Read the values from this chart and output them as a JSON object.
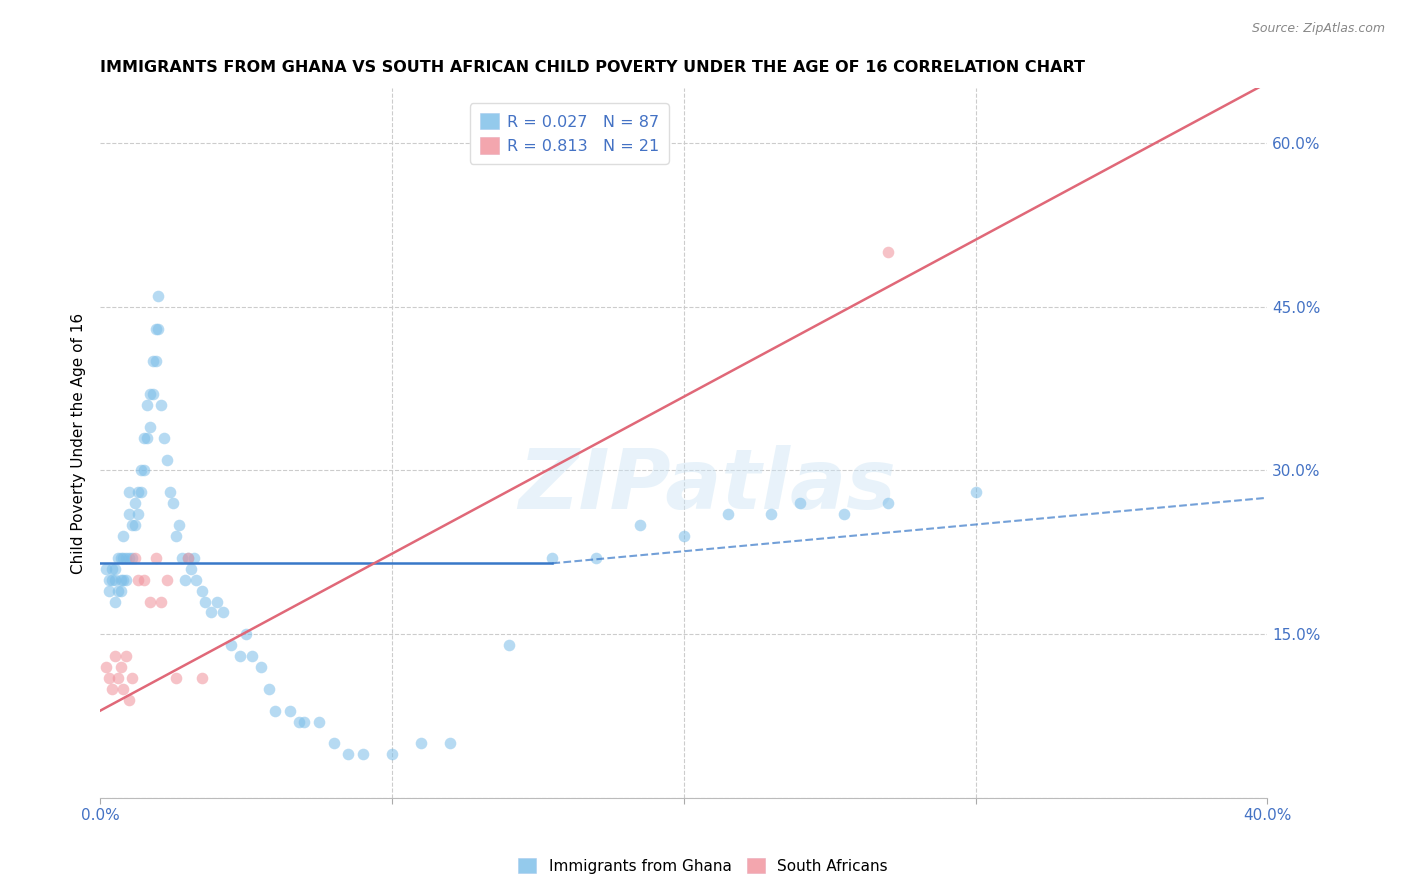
{
  "title": "IMMIGRANTS FROM GHANA VS SOUTH AFRICAN CHILD POVERTY UNDER THE AGE OF 16 CORRELATION CHART",
  "source_text": "Source: ZipAtlas.com",
  "ylabel": "Child Poverty Under the Age of 16",
  "xlim": [
    0.0,
    0.4
  ],
  "ylim": [
    0.0,
    0.65
  ],
  "yticks_right": [
    0.0,
    0.15,
    0.3,
    0.45,
    0.6
  ],
  "yticklabels_right": [
    "",
    "15.0%",
    "30.0%",
    "45.0%",
    "60.0%"
  ],
  "blue_scatter_x": [
    0.002,
    0.003,
    0.003,
    0.004,
    0.004,
    0.005,
    0.005,
    0.005,
    0.006,
    0.006,
    0.007,
    0.007,
    0.007,
    0.008,
    0.008,
    0.008,
    0.009,
    0.009,
    0.01,
    0.01,
    0.01,
    0.011,
    0.011,
    0.012,
    0.012,
    0.013,
    0.013,
    0.014,
    0.014,
    0.015,
    0.015,
    0.016,
    0.016,
    0.017,
    0.017,
    0.018,
    0.018,
    0.019,
    0.019,
    0.02,
    0.02,
    0.021,
    0.022,
    0.023,
    0.024,
    0.025,
    0.026,
    0.027,
    0.028,
    0.029,
    0.03,
    0.031,
    0.032,
    0.033,
    0.035,
    0.036,
    0.038,
    0.04,
    0.042,
    0.045,
    0.048,
    0.05,
    0.052,
    0.055,
    0.058,
    0.06,
    0.065,
    0.068,
    0.07,
    0.075,
    0.08,
    0.085,
    0.09,
    0.1,
    0.11,
    0.12,
    0.14,
    0.155,
    0.17,
    0.185,
    0.2,
    0.215,
    0.23,
    0.24,
    0.255,
    0.27,
    0.3
  ],
  "blue_scatter_y": [
    0.21,
    0.2,
    0.19,
    0.21,
    0.2,
    0.2,
    0.21,
    0.18,
    0.22,
    0.19,
    0.22,
    0.2,
    0.19,
    0.24,
    0.22,
    0.2,
    0.22,
    0.2,
    0.28,
    0.26,
    0.22,
    0.25,
    0.22,
    0.27,
    0.25,
    0.28,
    0.26,
    0.3,
    0.28,
    0.33,
    0.3,
    0.36,
    0.33,
    0.37,
    0.34,
    0.4,
    0.37,
    0.43,
    0.4,
    0.46,
    0.43,
    0.36,
    0.33,
    0.31,
    0.28,
    0.27,
    0.24,
    0.25,
    0.22,
    0.2,
    0.22,
    0.21,
    0.22,
    0.2,
    0.19,
    0.18,
    0.17,
    0.18,
    0.17,
    0.14,
    0.13,
    0.15,
    0.13,
    0.12,
    0.1,
    0.08,
    0.08,
    0.07,
    0.07,
    0.07,
    0.05,
    0.04,
    0.04,
    0.04,
    0.05,
    0.05,
    0.14,
    0.22,
    0.22,
    0.25,
    0.24,
    0.26,
    0.26,
    0.27,
    0.26,
    0.27,
    0.28
  ],
  "pink_scatter_x": [
    0.002,
    0.003,
    0.004,
    0.005,
    0.006,
    0.007,
    0.008,
    0.009,
    0.01,
    0.011,
    0.012,
    0.013,
    0.015,
    0.017,
    0.019,
    0.021,
    0.023,
    0.026,
    0.03,
    0.035,
    0.27
  ],
  "pink_scatter_y": [
    0.12,
    0.11,
    0.1,
    0.13,
    0.11,
    0.12,
    0.1,
    0.13,
    0.09,
    0.11,
    0.22,
    0.2,
    0.2,
    0.18,
    0.22,
    0.18,
    0.2,
    0.11,
    0.22,
    0.11,
    0.5
  ],
  "blue_solid_line": {
    "x0": 0.0,
    "x1": 0.155,
    "y0": 0.215,
    "y1": 0.215
  },
  "blue_dash_line": {
    "x0": 0.155,
    "x1": 0.4,
    "y0": 0.215,
    "y1": 0.275
  },
  "pink_line": {
    "x0": 0.0,
    "x1": 0.4,
    "y0": 0.08,
    "y1": 0.655
  },
  "watermark": "ZIPatlas",
  "scatter_alpha": 0.55,
  "scatter_size": 70,
  "blue_color": "#7abde8",
  "pink_color": "#f0909a",
  "blue_line_color": "#3878c8",
  "pink_line_color": "#e06878",
  "grid_color": "#cccccc",
  "title_fontsize": 11.5,
  "tick_label_color": "#4472c4",
  "legend_r1": "R = 0.027",
  "legend_n1": "N = 87",
  "legend_r2": "R = 0.813",
  "legend_n2": "N = 21",
  "legend_label1": "Immigrants from Ghana",
  "legend_label2": "South Africans"
}
